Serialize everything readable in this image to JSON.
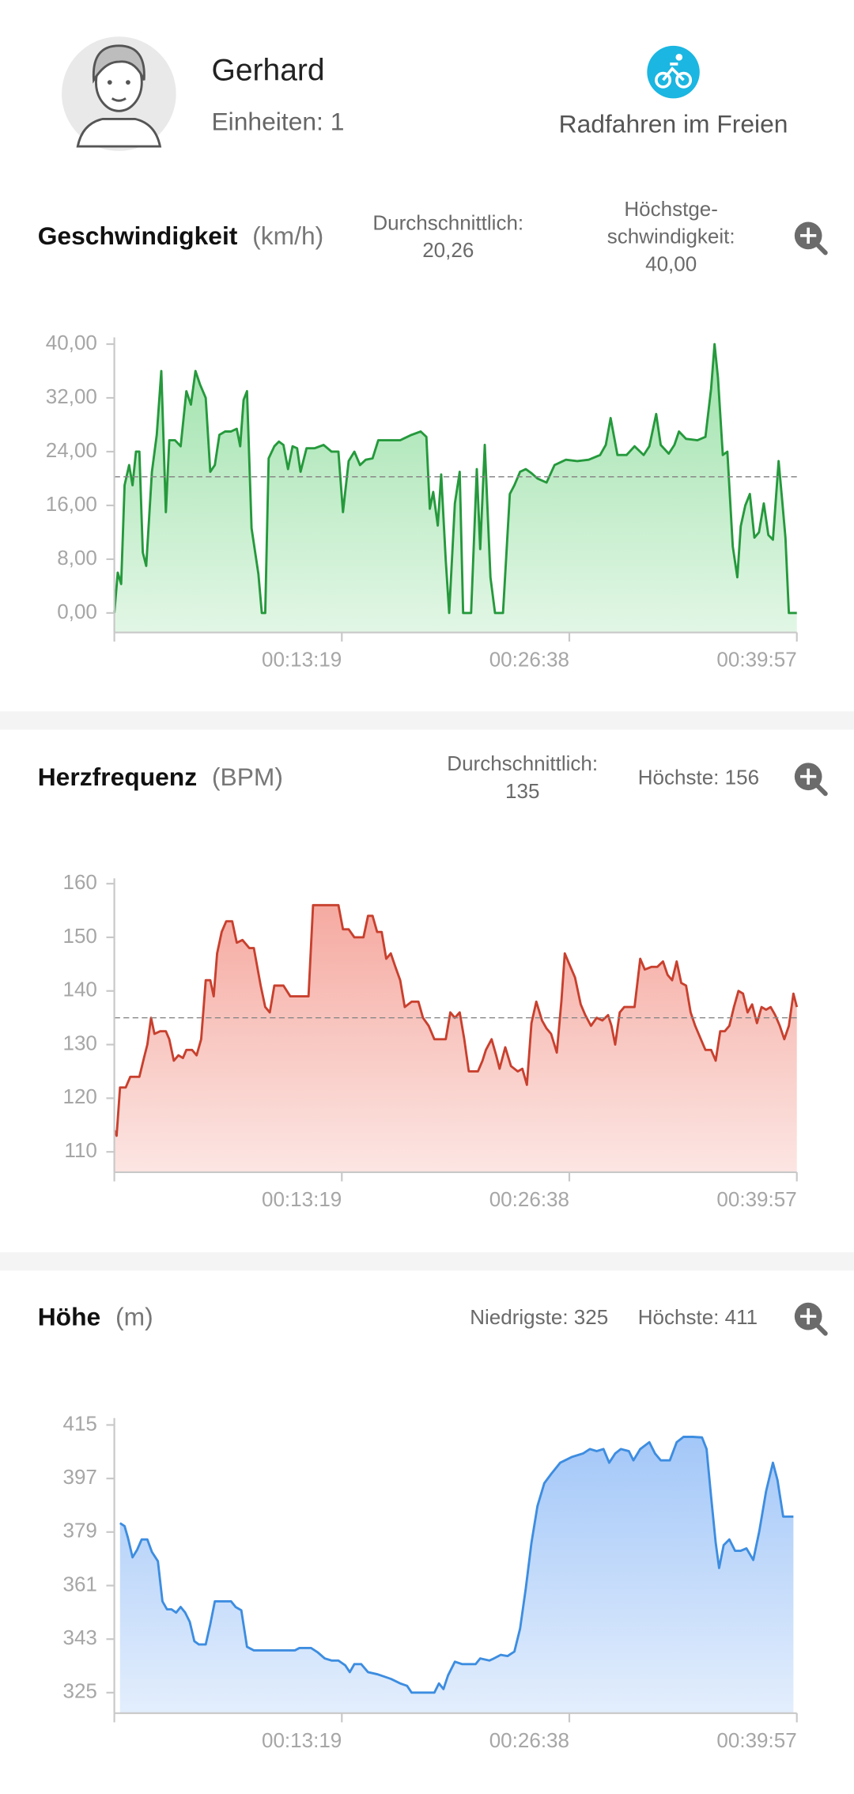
{
  "header": {
    "name": "Gerhard",
    "units": "Einheiten: 1",
    "activity": "Radfahren im Freien"
  },
  "chart_data": [
    {
      "type": "line",
      "title": "Geschwindigkeit",
      "unit": "(km/h)",
      "color": "#25993c",
      "fill": "#9fe2ab",
      "average_line": true,
      "stats": [
        {
          "label": "Durchschnittlich:",
          "value": 20.26,
          "value_label": "20,26"
        },
        {
          "label": "Höchstge-schwindigkeit:",
          "value": 40,
          "value_label": "40,00"
        }
      ],
      "xlim": [
        0,
        2397
      ],
      "xticks": [
        {
          "value": 799,
          "label": "00:13:19"
        },
        {
          "value": 1598,
          "label": "00:26:38"
        },
        {
          "value": 2397,
          "label": "00:39:57"
        }
      ],
      "ylim": [
        -2.9,
        41
      ],
      "yticks": [
        {
          "value": 0,
          "label": "0,00"
        },
        {
          "value": 8,
          "label": "8,00"
        },
        {
          "value": 16,
          "label": "16,00"
        },
        {
          "value": 24,
          "label": "24,00"
        },
        {
          "value": 32,
          "label": "32,00"
        },
        {
          "value": 40,
          "label": "40,00"
        }
      ],
      "x": [
        0,
        12,
        24,
        36,
        52,
        64,
        76,
        88,
        100,
        112,
        132,
        149,
        165,
        181,
        193,
        213,
        233,
        253,
        269,
        285,
        301,
        321,
        337,
        353,
        369,
        389,
        410,
        430,
        442,
        454,
        466,
        482,
        506,
        518,
        530,
        542,
        562,
        578,
        594,
        610,
        626,
        642,
        654,
        675,
        703,
        735,
        763,
        787,
        803,
        823,
        843,
        863,
        883,
        907,
        927,
        964,
        1004,
        1044,
        1076,
        1096,
        1108,
        1120,
        1136,
        1148,
        1164,
        1176,
        1196,
        1213,
        1225,
        1253,
        1273,
        1285,
        1301,
        1321,
        1337,
        1365,
        1389,
        1405,
        1425,
        1445,
        1465,
        1486,
        1518,
        1546,
        1586,
        1626,
        1666,
        1706,
        1726,
        1743,
        1767,
        1799,
        1827,
        1859,
        1879,
        1903,
        1919,
        1947,
        1967,
        1983,
        2008,
        2048,
        2076,
        2096,
        2108,
        2120,
        2137,
        2153,
        2172,
        2188,
        2200,
        2216,
        2232,
        2248,
        2264,
        2281,
        2297,
        2313,
        2333,
        2345,
        2357,
        2369,
        2397
      ],
      "values": [
        0,
        6,
        4.3,
        19,
        22,
        19,
        24,
        24,
        9,
        7,
        21,
        26.5,
        36,
        15,
        25.7,
        25.7,
        24.8,
        33,
        31,
        36,
        34,
        32,
        21,
        22,
        26.5,
        27,
        27,
        27.4,
        24.8,
        31.7,
        33,
        12.6,
        5.8,
        0,
        0,
        23,
        24.8,
        25.5,
        25,
        21.4,
        24.8,
        24.5,
        21,
        24.5,
        24.5,
        25,
        24,
        24,
        15,
        22.6,
        24,
        22,
        22.8,
        23,
        25.7,
        25.7,
        25.7,
        26.5,
        27,
        26.2,
        15.5,
        18,
        13,
        20.6,
        7.8,
        0,
        16.3,
        21,
        0,
        0,
        21.4,
        9.5,
        25,
        5.3,
        0,
        0,
        17.7,
        19,
        21,
        21.4,
        20.8,
        20,
        19.4,
        22,
        22.8,
        22.6,
        22.8,
        23.5,
        25,
        29,
        23.5,
        23.5,
        24.8,
        23.5,
        24.8,
        29.6,
        25,
        23.7,
        25,
        27,
        25.9,
        25.7,
        26.2,
        33.4,
        40,
        35,
        23.5,
        24,
        9.9,
        5.3,
        12.9,
        16,
        17.7,
        11.2,
        12,
        16.3,
        11.6,
        10.9,
        22.6,
        17,
        11.2,
        0,
        0
      ]
    },
    {
      "type": "line",
      "title": "Herzfrequenz",
      "unit": "(BPM)",
      "color": "#c8402e",
      "fill": "#f5aaa1",
      "average_line": true,
      "stats": [
        {
          "label": "Durchschnittlich:",
          "value": 135
        },
        {
          "label": "Höchste:",
          "value": 156
        }
      ],
      "xlim": [
        0,
        2397
      ],
      "xticks": [
        {
          "value": 799,
          "label": "00:13:19"
        },
        {
          "value": 1598,
          "label": "00:26:38"
        },
        {
          "value": 2397,
          "label": "00:39:57"
        }
      ],
      "ylim": [
        106.2,
        161
      ],
      "yticks": [
        110,
        120,
        130,
        140,
        150,
        160
      ],
      "x": [
        0,
        8,
        20,
        40,
        56,
        88,
        104,
        116,
        129,
        141,
        161,
        181,
        193,
        209,
        225,
        241,
        253,
        273,
        289,
        305,
        321,
        337,
        349,
        361,
        377,
        393,
        414,
        430,
        450,
        474,
        490,
        514,
        530,
        546,
        562,
        594,
        618,
        650,
        682,
        698,
        746,
        787,
        803,
        823,
        843,
        875,
        891,
        907,
        923,
        939,
        955,
        971,
        987,
        1004,
        1020,
        1044,
        1068,
        1084,
        1104,
        1124,
        1164,
        1180,
        1196,
        1213,
        1229,
        1245,
        1277,
        1293,
        1305,
        1325,
        1341,
        1353,
        1373,
        1393,
        1417,
        1433,
        1449,
        1465,
        1482,
        1502,
        1518,
        1534,
        1554,
        1570,
        1582,
        1598,
        1618,
        1638,
        1654,
        1674,
        1694,
        1714,
        1734,
        1746,
        1759,
        1775,
        1791,
        1807,
        1827,
        1847,
        1863,
        1887,
        1907,
        1927,
        1943,
        1959,
        1975,
        1991,
        2008,
        2024,
        2040,
        2056,
        2076,
        2096,
        2112,
        2128,
        2144,
        2160,
        2176,
        2192,
        2208,
        2224,
        2240,
        2257,
        2273,
        2289,
        2305,
        2321,
        2337,
        2353,
        2369,
        2385,
        2397
      ],
      "values": [
        114,
        113,
        122,
        122,
        124,
        124,
        127.5,
        130,
        135,
        132,
        132.5,
        132.5,
        131,
        127,
        128,
        127.5,
        129,
        129,
        128,
        131,
        142,
        142,
        139,
        147,
        151,
        153,
        153,
        149,
        149.5,
        148,
        148,
        141,
        137,
        136,
        141,
        141,
        139,
        139,
        139,
        156,
        156,
        156,
        151.5,
        151.5,
        150,
        150,
        154,
        154,
        151,
        151,
        146,
        147,
        144.5,
        142,
        137,
        138,
        138,
        135,
        133.5,
        131,
        131,
        136,
        135,
        136,
        131,
        125,
        125,
        127,
        129,
        131,
        128,
        125.5,
        129.5,
        126,
        125,
        125.5,
        122.5,
        134,
        138,
        134.5,
        133,
        132,
        128.5,
        138,
        147,
        145,
        142.5,
        137.5,
        135.5,
        133.5,
        135,
        134.5,
        135.5,
        133.5,
        130,
        136,
        137,
        137,
        137,
        146,
        144,
        144.5,
        144.5,
        145.5,
        143,
        142,
        145.5,
        141.5,
        141,
        136,
        133.5,
        131.5,
        129,
        129,
        127,
        132.5,
        132.5,
        133.5,
        137,
        140,
        139.5,
        136,
        137.5,
        134,
        137,
        136.5,
        137,
        135.5,
        133.5,
        131,
        133.5,
        139.5,
        137
      ]
    },
    {
      "type": "line",
      "title": "Höhe",
      "unit": "(m)",
      "color": "#3d8de0",
      "fill": "#a3c7f8",
      "average_line": false,
      "stats": [
        {
          "label": "Niedrigste:",
          "value": 325
        },
        {
          "label": "Höchste:",
          "value": 411
        }
      ],
      "xlim": [
        0,
        2397
      ],
      "xticks": [
        {
          "value": 799,
          "label": "00:13:19"
        },
        {
          "value": 1598,
          "label": "00:26:38"
        },
        {
          "value": 2397,
          "label": "00:39:57"
        }
      ],
      "ylim": [
        318.1,
        417.3
      ],
      "yticks": [
        325,
        343,
        361,
        379,
        397,
        415
      ],
      "x": [
        20,
        36,
        48,
        64,
        80,
        96,
        116,
        132,
        153,
        169,
        185,
        201,
        217,
        233,
        249,
        265,
        281,
        297,
        321,
        337,
        353,
        393,
        410,
        426,
        446,
        466,
        490,
        562,
        634,
        650,
        691,
        715,
        739,
        763,
        787,
        811,
        827,
        843,
        867,
        891,
        923,
        948,
        972,
        1004,
        1028,
        1044,
        1092,
        1124,
        1140,
        1156,
        1172,
        1196,
        1221,
        1269,
        1285,
        1317,
        1333,
        1357,
        1381,
        1405,
        1425,
        1445,
        1465,
        1486,
        1510,
        1534,
        1566,
        1606,
        1646,
        1670,
        1694,
        1718,
        1738,
        1759,
        1779,
        1807,
        1823,
        1847,
        1879,
        1899,
        1919,
        1951,
        1975,
        1999,
        2032,
        2064,
        2080,
        2096,
        2112,
        2124,
        2140,
        2160,
        2180,
        2200,
        2220,
        2244,
        2265,
        2289,
        2313,
        2329,
        2349,
        2369,
        2385
      ],
      "values": [
        382,
        381,
        377,
        370.5,
        373,
        376.5,
        376.5,
        372.3,
        369.2,
        355.7,
        353,
        353,
        351.9,
        353.8,
        351.9,
        348.8,
        342.3,
        341.2,
        341.2,
        348,
        355.7,
        355.7,
        355.7,
        353.8,
        352.7,
        340.4,
        339.2,
        339.2,
        339.2,
        340,
        340,
        338.5,
        336.5,
        335.8,
        335.8,
        334.2,
        331.9,
        334.6,
        334.6,
        331.9,
        331.2,
        330.4,
        329.6,
        328.1,
        327.3,
        325,
        325,
        325,
        328.1,
        326.2,
        330.8,
        335.4,
        334.6,
        334.6,
        336.5,
        335.8,
        336.5,
        337.7,
        337.3,
        338.8,
        346.5,
        360,
        375.4,
        387.7,
        395.4,
        398.5,
        402.3,
        404.2,
        405.4,
        406.9,
        406.2,
        406.9,
        402.3,
        405.4,
        406.9,
        406.2,
        403.1,
        406.9,
        409.2,
        405.4,
        403.1,
        403.1,
        409.2,
        411,
        411,
        410.8,
        406.9,
        390.8,
        375.4,
        366.9,
        374.6,
        376.5,
        372.7,
        372.7,
        373.5,
        369.6,
        379.2,
        392.7,
        402.3,
        396.5,
        384.2,
        384.2,
        384.2
      ]
    }
  ]
}
